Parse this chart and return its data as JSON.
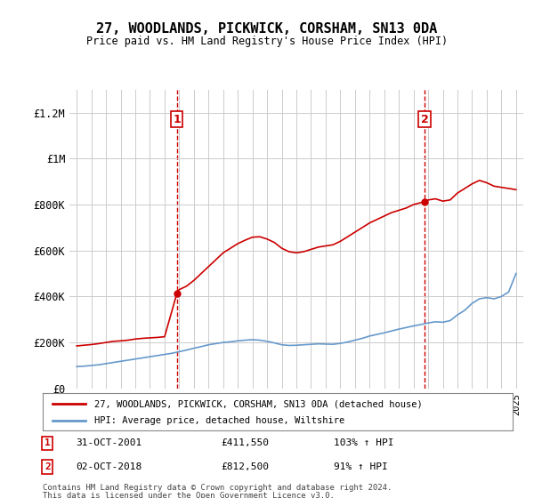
{
  "title": "27, WOODLANDS, PICKWICK, CORSHAM, SN13 0DA",
  "subtitle": "Price paid vs. HM Land Registry's House Price Index (HPI)",
  "legend_line1": "27, WOODLANDS, PICKWICK, CORSHAM, SN13 0DA (detached house)",
  "legend_line2": "HPI: Average price, detached house, Wiltshire",
  "annotation1": {
    "label": "1",
    "date": "31-OCT-2001",
    "price": "£411,550",
    "pct": "103% ↑ HPI",
    "x": 2001.83
  },
  "annotation2": {
    "label": "2",
    "date": "02-OCT-2018",
    "price": "£812,500",
    "pct": "91% ↑ HPI",
    "x": 2018.75
  },
  "footer1": "Contains HM Land Registry data © Crown copyright and database right 2024.",
  "footer2": "This data is licensed under the Open Government Licence v3.0.",
  "ylim": [
    0,
    1300000
  ],
  "xlim": [
    1994.5,
    2025.5
  ],
  "yticks": [
    0,
    200000,
    400000,
    600000,
    800000,
    1000000,
    1200000
  ],
  "ytick_labels": [
    "£0",
    "£200K",
    "£400K",
    "£600K",
    "£800K",
    "£1M",
    "£1.2M"
  ],
  "xticks": [
    1995,
    1996,
    1997,
    1998,
    1999,
    2000,
    2001,
    2002,
    2003,
    2004,
    2005,
    2006,
    2007,
    2008,
    2009,
    2010,
    2011,
    2012,
    2013,
    2014,
    2015,
    2016,
    2017,
    2018,
    2019,
    2020,
    2021,
    2022,
    2023,
    2024,
    2025
  ],
  "red_line_color": "#cc0000",
  "blue_line_color": "#6699cc",
  "vline_color": "#cc0000",
  "background_color": "#ffffff",
  "grid_color": "#cccccc",
  "red_x": [
    1995.0,
    1995.5,
    1996.0,
    1996.5,
    1997.0,
    1997.5,
    1998.0,
    1998.5,
    1999.0,
    1999.5,
    2000.0,
    2000.5,
    2001.0,
    2001.83,
    2002.0,
    2002.5,
    2003.0,
    2003.5,
    2004.0,
    2004.5,
    2005.0,
    2005.5,
    2006.0,
    2006.5,
    2007.0,
    2007.5,
    2008.0,
    2008.5,
    2009.0,
    2009.5,
    2010.0,
    2010.5,
    2011.0,
    2011.5,
    2012.0,
    2012.5,
    2013.0,
    2013.5,
    2014.0,
    2014.5,
    2015.0,
    2015.5,
    2016.0,
    2016.5,
    2017.0,
    2017.5,
    2018.0,
    2018.75,
    2019.0,
    2019.5,
    2020.0,
    2020.5,
    2021.0,
    2021.5,
    2022.0,
    2022.5,
    2023.0,
    2023.5,
    2024.0,
    2024.5,
    2025.0
  ],
  "red_y": [
    185000,
    188000,
    191000,
    195000,
    200000,
    205000,
    207000,
    210000,
    215000,
    218000,
    220000,
    222000,
    225000,
    411550,
    430000,
    445000,
    470000,
    500000,
    530000,
    560000,
    590000,
    610000,
    630000,
    645000,
    658000,
    660000,
    650000,
    635000,
    610000,
    595000,
    590000,
    595000,
    605000,
    615000,
    620000,
    625000,
    640000,
    660000,
    680000,
    700000,
    720000,
    735000,
    750000,
    765000,
    775000,
    785000,
    800000,
    812500,
    820000,
    825000,
    815000,
    820000,
    850000,
    870000,
    890000,
    905000,
    895000,
    880000,
    875000,
    870000,
    865000
  ],
  "blue_x": [
    1995.0,
    1995.5,
    1996.0,
    1996.5,
    1997.0,
    1997.5,
    1998.0,
    1998.5,
    1999.0,
    1999.5,
    2000.0,
    2000.5,
    2001.0,
    2001.5,
    2002.0,
    2002.5,
    2003.0,
    2003.5,
    2004.0,
    2004.5,
    2005.0,
    2005.5,
    2006.0,
    2006.5,
    2007.0,
    2007.5,
    2008.0,
    2008.5,
    2009.0,
    2009.5,
    2010.0,
    2010.5,
    2011.0,
    2011.5,
    2012.0,
    2012.5,
    2013.0,
    2013.5,
    2014.0,
    2014.5,
    2015.0,
    2015.5,
    2016.0,
    2016.5,
    2017.0,
    2017.5,
    2018.0,
    2018.5,
    2019.0,
    2019.5,
    2020.0,
    2020.5,
    2021.0,
    2021.5,
    2022.0,
    2022.5,
    2023.0,
    2023.5,
    2024.0,
    2024.5,
    2025.0
  ],
  "blue_y": [
    95000,
    97000,
    100000,
    103000,
    108000,
    113000,
    118000,
    123000,
    128000,
    133000,
    138000,
    143000,
    148000,
    153000,
    160000,
    167000,
    175000,
    182000,
    190000,
    195000,
    200000,
    203000,
    207000,
    210000,
    212000,
    210000,
    205000,
    198000,
    190000,
    187000,
    188000,
    190000,
    192000,
    194000,
    193000,
    192000,
    196000,
    202000,
    210000,
    218000,
    228000,
    235000,
    242000,
    250000,
    258000,
    265000,
    272000,
    278000,
    285000,
    290000,
    288000,
    295000,
    320000,
    340000,
    370000,
    390000,
    395000,
    390000,
    400000,
    420000,
    500000
  ]
}
